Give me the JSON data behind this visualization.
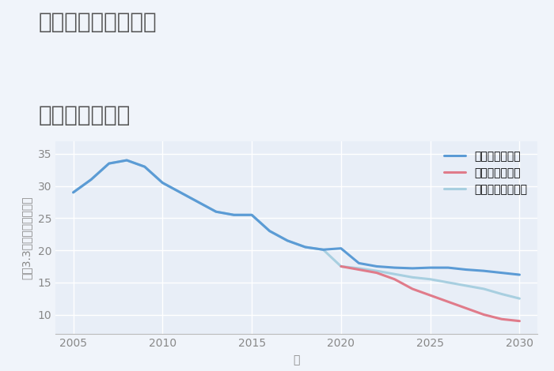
{
  "title_line1": "三重県桑名市安永の",
  "title_line2": "土地の価格推移",
  "xlabel": "年",
  "ylabel": "坪（3.3㎡）単価（万円）",
  "background_color": "#f0f4fa",
  "plot_bg_color": "#e8eef7",
  "grid_color": "#ffffff",
  "xlim": [
    2004,
    2031
  ],
  "ylim": [
    7,
    37
  ],
  "yticks": [
    10,
    15,
    20,
    25,
    30,
    35
  ],
  "xticks": [
    2005,
    2010,
    2015,
    2020,
    2025,
    2030
  ],
  "scenarios": {
    "good": {
      "label": "グッドシナリオ",
      "color": "#5b9bd5",
      "linewidth": 2.2,
      "years": [
        2005,
        2006,
        2007,
        2008,
        2009,
        2010,
        2011,
        2012,
        2013,
        2014,
        2015,
        2016,
        2017,
        2018,
        2019,
        2020,
        2021,
        2022,
        2023,
        2024,
        2025,
        2026,
        2027,
        2028,
        2029,
        2030
      ],
      "values": [
        29.0,
        31.0,
        33.5,
        34.0,
        33.0,
        30.5,
        29.0,
        27.5,
        26.0,
        25.5,
        25.5,
        23.0,
        21.5,
        20.5,
        20.1,
        20.3,
        18.0,
        17.5,
        17.3,
        17.2,
        17.3,
        17.3,
        17.0,
        16.8,
        16.5,
        16.2
      ]
    },
    "bad": {
      "label": "バッドシナリオ",
      "color": "#e07b8a",
      "linewidth": 2.2,
      "years": [
        2020,
        2021,
        2022,
        2023,
        2024,
        2025,
        2026,
        2027,
        2028,
        2029,
        2030
      ],
      "values": [
        17.5,
        17.0,
        16.5,
        15.5,
        14.0,
        13.0,
        12.0,
        11.0,
        10.0,
        9.3,
        9.0
      ]
    },
    "normal": {
      "label": "ノーマルシナリオ",
      "color": "#a8cfe0",
      "linewidth": 2.2,
      "years": [
        2005,
        2006,
        2007,
        2008,
        2009,
        2010,
        2011,
        2012,
        2013,
        2014,
        2015,
        2016,
        2017,
        2018,
        2019,
        2020,
        2021,
        2022,
        2023,
        2024,
        2025,
        2026,
        2027,
        2028,
        2029,
        2030
      ],
      "values": [
        29.0,
        31.0,
        33.5,
        34.0,
        33.0,
        30.5,
        29.0,
        27.5,
        26.0,
        25.5,
        25.5,
        23.0,
        21.5,
        20.5,
        20.1,
        17.5,
        17.2,
        16.8,
        16.3,
        15.8,
        15.5,
        15.0,
        14.5,
        14.0,
        13.2,
        12.5
      ]
    }
  },
  "legend_fontsize": 10,
  "title_fontsize": 20,
  "title_color": "#555555",
  "label_fontsize": 10,
  "tick_fontsize": 10,
  "tick_color": "#888888"
}
